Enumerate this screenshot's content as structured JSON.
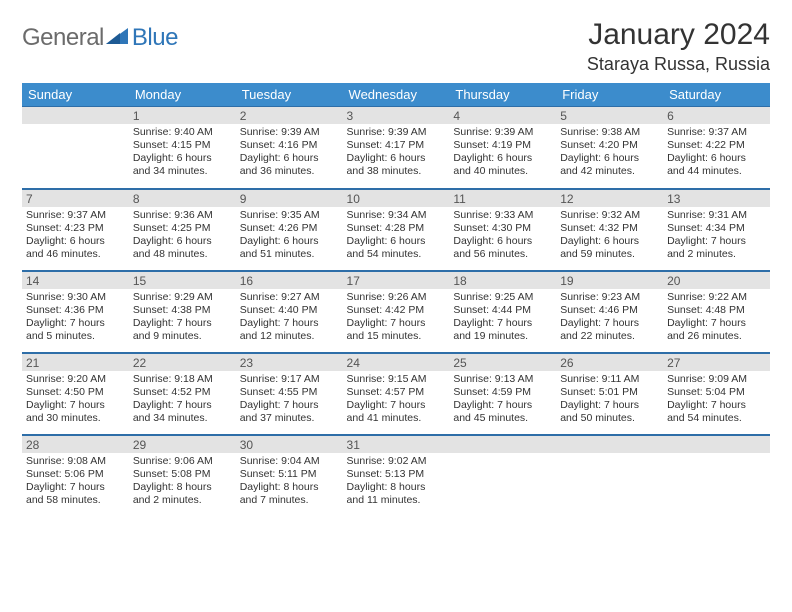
{
  "brand": {
    "gray": "General",
    "blue": "Blue"
  },
  "title": "January 2024",
  "location": "Staraya Russa, Russia",
  "colors": {
    "header_bg": "#3c8ccc",
    "header_text": "#ffffff",
    "daynum_bg": "#e3e3e3",
    "border": "#2e6ea8",
    "logo_gray": "#6b6b6b",
    "logo_blue": "#2f76b8"
  },
  "weekdays": [
    "Sunday",
    "Monday",
    "Tuesday",
    "Wednesday",
    "Thursday",
    "Friday",
    "Saturday"
  ],
  "weeks": [
    [
      null,
      {
        "n": "1",
        "sr": "9:40 AM",
        "ss": "4:15 PM",
        "dl": "6 hours and 34 minutes."
      },
      {
        "n": "2",
        "sr": "9:39 AM",
        "ss": "4:16 PM",
        "dl": "6 hours and 36 minutes."
      },
      {
        "n": "3",
        "sr": "9:39 AM",
        "ss": "4:17 PM",
        "dl": "6 hours and 38 minutes."
      },
      {
        "n": "4",
        "sr": "9:39 AM",
        "ss": "4:19 PM",
        "dl": "6 hours and 40 minutes."
      },
      {
        "n": "5",
        "sr": "9:38 AM",
        "ss": "4:20 PM",
        "dl": "6 hours and 42 minutes."
      },
      {
        "n": "6",
        "sr": "9:37 AM",
        "ss": "4:22 PM",
        "dl": "6 hours and 44 minutes."
      }
    ],
    [
      {
        "n": "7",
        "sr": "9:37 AM",
        "ss": "4:23 PM",
        "dl": "6 hours and 46 minutes."
      },
      {
        "n": "8",
        "sr": "9:36 AM",
        "ss": "4:25 PM",
        "dl": "6 hours and 48 minutes."
      },
      {
        "n": "9",
        "sr": "9:35 AM",
        "ss": "4:26 PM",
        "dl": "6 hours and 51 minutes."
      },
      {
        "n": "10",
        "sr": "9:34 AM",
        "ss": "4:28 PM",
        "dl": "6 hours and 54 minutes."
      },
      {
        "n": "11",
        "sr": "9:33 AM",
        "ss": "4:30 PM",
        "dl": "6 hours and 56 minutes."
      },
      {
        "n": "12",
        "sr": "9:32 AM",
        "ss": "4:32 PM",
        "dl": "6 hours and 59 minutes."
      },
      {
        "n": "13",
        "sr": "9:31 AM",
        "ss": "4:34 PM",
        "dl": "7 hours and 2 minutes."
      }
    ],
    [
      {
        "n": "14",
        "sr": "9:30 AM",
        "ss": "4:36 PM",
        "dl": "7 hours and 5 minutes."
      },
      {
        "n": "15",
        "sr": "9:29 AM",
        "ss": "4:38 PM",
        "dl": "7 hours and 9 minutes."
      },
      {
        "n": "16",
        "sr": "9:27 AM",
        "ss": "4:40 PM",
        "dl": "7 hours and 12 minutes."
      },
      {
        "n": "17",
        "sr": "9:26 AM",
        "ss": "4:42 PM",
        "dl": "7 hours and 15 minutes."
      },
      {
        "n": "18",
        "sr": "9:25 AM",
        "ss": "4:44 PM",
        "dl": "7 hours and 19 minutes."
      },
      {
        "n": "19",
        "sr": "9:23 AM",
        "ss": "4:46 PM",
        "dl": "7 hours and 22 minutes."
      },
      {
        "n": "20",
        "sr": "9:22 AM",
        "ss": "4:48 PM",
        "dl": "7 hours and 26 minutes."
      }
    ],
    [
      {
        "n": "21",
        "sr": "9:20 AM",
        "ss": "4:50 PM",
        "dl": "7 hours and 30 minutes."
      },
      {
        "n": "22",
        "sr": "9:18 AM",
        "ss": "4:52 PM",
        "dl": "7 hours and 34 minutes."
      },
      {
        "n": "23",
        "sr": "9:17 AM",
        "ss": "4:55 PM",
        "dl": "7 hours and 37 minutes."
      },
      {
        "n": "24",
        "sr": "9:15 AM",
        "ss": "4:57 PM",
        "dl": "7 hours and 41 minutes."
      },
      {
        "n": "25",
        "sr": "9:13 AM",
        "ss": "4:59 PM",
        "dl": "7 hours and 45 minutes."
      },
      {
        "n": "26",
        "sr": "9:11 AM",
        "ss": "5:01 PM",
        "dl": "7 hours and 50 minutes."
      },
      {
        "n": "27",
        "sr": "9:09 AM",
        "ss": "5:04 PM",
        "dl": "7 hours and 54 minutes."
      }
    ],
    [
      {
        "n": "28",
        "sr": "9:08 AM",
        "ss": "5:06 PM",
        "dl": "7 hours and 58 minutes."
      },
      {
        "n": "29",
        "sr": "9:06 AM",
        "ss": "5:08 PM",
        "dl": "8 hours and 2 minutes."
      },
      {
        "n": "30",
        "sr": "9:04 AM",
        "ss": "5:11 PM",
        "dl": "8 hours and 7 minutes."
      },
      {
        "n": "31",
        "sr": "9:02 AM",
        "ss": "5:13 PM",
        "dl": "8 hours and 11 minutes."
      },
      null,
      null,
      null
    ]
  ],
  "labels": {
    "sunrise": "Sunrise: ",
    "sunset": "Sunset: ",
    "daylight": "Daylight: "
  }
}
